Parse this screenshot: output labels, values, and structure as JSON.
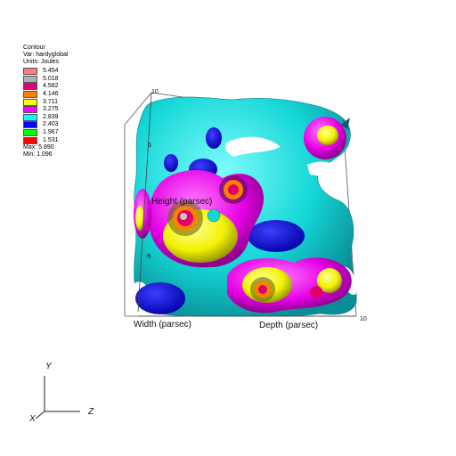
{
  "legend": {
    "title": "Contour",
    "var": "Var: hardyglobal",
    "units": "Units: Joules",
    "levels": [
      {
        "label": "5.454",
        "color": "#ff7b7b"
      },
      {
        "label": "5.018",
        "color": "#b0b0b0"
      },
      {
        "label": "4.582",
        "color": "#e0006a"
      },
      {
        "label": "4.146",
        "color": "#ff8000"
      },
      {
        "label": "3.711",
        "color": "#ffff00"
      },
      {
        "label": "3.275",
        "color": "#ff00ff"
      },
      {
        "label": "2.839",
        "color": "#00ffff"
      },
      {
        "label": "2.403",
        "color": "#0000ff"
      },
      {
        "label": "1.967",
        "color": "#00ff00"
      },
      {
        "label": "1.531",
        "color": "#ff0000"
      }
    ],
    "max": "Max: 5.890",
    "min": "Min: 1.096"
  },
  "axes": {
    "width": "Width (parsec)",
    "depth": "Depth (parsec)",
    "height": "Height (parsec)"
  },
  "ticks": {
    "top": "10",
    "height_mid": "5",
    "height_low": "-5",
    "corner": "10"
  },
  "triad": {
    "x": "X",
    "y": "Y",
    "z": "Z"
  }
}
